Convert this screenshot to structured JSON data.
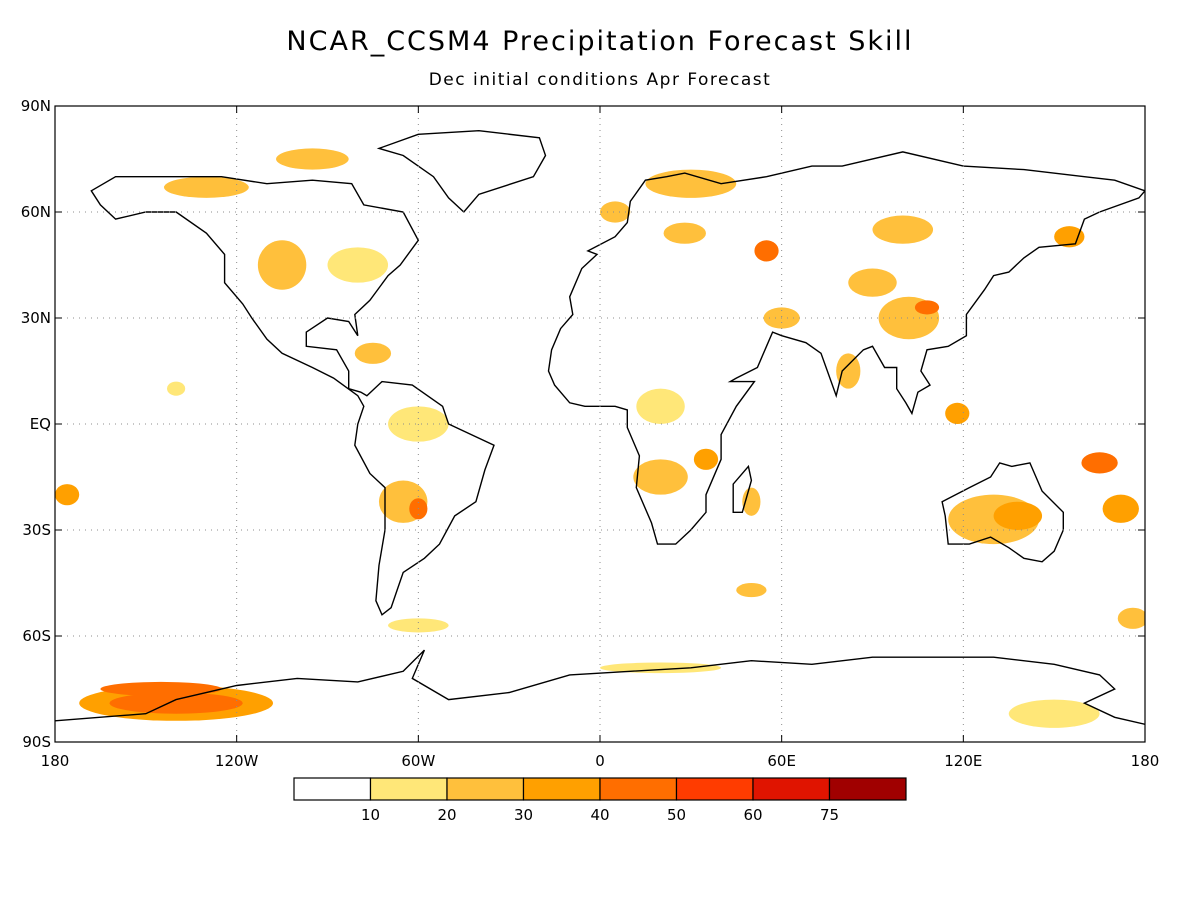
{
  "title": "NCAR_CCSM4 Precipitation Forecast Skill",
  "subtitle": "Dec initial conditions  Apr Forecast",
  "map": {
    "projection": "equirectangular",
    "lon_range": [
      -180,
      180
    ],
    "lat_range": [
      -90,
      90
    ],
    "gridlines": "dotted",
    "lat_ticks": [
      {
        "value": 90,
        "label": "90N"
      },
      {
        "value": 60,
        "label": "60N"
      },
      {
        "value": 30,
        "label": "30N"
      },
      {
        "value": 0,
        "label": "EQ"
      },
      {
        "value": -30,
        "label": "30S"
      },
      {
        "value": -60,
        "label": "60S"
      },
      {
        "value": -90,
        "label": "90S"
      }
    ],
    "lon_ticks": [
      {
        "value": -180,
        "label": "180"
      },
      {
        "value": -120,
        "label": "120W"
      },
      {
        "value": -60,
        "label": "60W"
      },
      {
        "value": 0,
        "label": "0"
      },
      {
        "value": 60,
        "label": "60E"
      },
      {
        "value": 120,
        "label": "120E"
      },
      {
        "value": 180,
        "label": "180"
      }
    ]
  },
  "legend": {
    "boxes": [
      {
        "color": "#ffffff"
      },
      {
        "color": "#ffe778"
      },
      {
        "color": "#ffc03c"
      },
      {
        "color": "#ffa000"
      },
      {
        "color": "#ff6e00"
      },
      {
        "color": "#ff3c00"
      },
      {
        "color": "#e01400"
      },
      {
        "color": "#a00000"
      }
    ],
    "labels": [
      "10",
      "20",
      "30",
      "40",
      "50",
      "60",
      "75"
    ]
  },
  "skill_regions": [
    {
      "lon": -140,
      "lat": -79,
      "rlon": 32,
      "rlat": 5,
      "level": 3
    },
    {
      "lon": -140,
      "lat": -79,
      "rlon": 22,
      "rlat": 3,
      "level": 4
    },
    {
      "lon": -145,
      "lat": -75,
      "rlon": 20,
      "rlat": 2,
      "level": 4
    },
    {
      "lon": 150,
      "lat": -82,
      "rlon": 15,
      "rlat": 4,
      "level": 1
    },
    {
      "lon": 130,
      "lat": -27,
      "rlon": 15,
      "rlat": 7,
      "level": 2
    },
    {
      "lon": 138,
      "lat": -26,
      "rlon": 8,
      "rlat": 4,
      "level": 3
    },
    {
      "lon": 165,
      "lat": -11,
      "rlon": 6,
      "rlat": 3,
      "level": 4
    },
    {
      "lon": 172,
      "lat": -24,
      "rlon": 6,
      "rlat": 4,
      "level": 3
    },
    {
      "lon": 176,
      "lat": -55,
      "rlon": 5,
      "rlat": 3,
      "level": 2
    },
    {
      "lon": 102,
      "lat": 30,
      "rlon": 10,
      "rlat": 6,
      "level": 2
    },
    {
      "lon": 108,
      "lat": 33,
      "rlon": 4,
      "rlat": 2,
      "level": 4
    },
    {
      "lon": 90,
      "lat": 40,
      "rlon": 8,
      "rlat": 4,
      "level": 2
    },
    {
      "lon": 55,
      "lat": 49,
      "rlon": 4,
      "rlat": 3,
      "level": 4
    },
    {
      "lon": 28,
      "lat": 54,
      "rlon": 7,
      "rlat": 3,
      "level": 2
    },
    {
      "lon": 30,
      "lat": 68,
      "rlon": 15,
      "rlat": 4,
      "level": 2
    },
    {
      "lon": 100,
      "lat": 55,
      "rlon": 10,
      "rlat": 4,
      "level": 2
    },
    {
      "lon": 155,
      "lat": 53,
      "rlon": 5,
      "rlat": 3,
      "level": 3
    },
    {
      "lon": 82,
      "lat": 15,
      "rlon": 4,
      "rlat": 5,
      "level": 2
    },
    {
      "lon": 118,
      "lat": 3,
      "rlon": 4,
      "rlat": 3,
      "level": 3
    },
    {
      "lon": 20,
      "lat": -15,
      "rlon": 9,
      "rlat": 5,
      "level": 2
    },
    {
      "lon": 35,
      "lat": -10,
      "rlon": 4,
      "rlat": 3,
      "level": 3
    },
    {
      "lon": 20,
      "lat": 5,
      "rlon": 8,
      "rlat": 5,
      "level": 1
    },
    {
      "lon": -65,
      "lat": -22,
      "rlon": 8,
      "rlat": 6,
      "level": 2
    },
    {
      "lon": -60,
      "lat": -24,
      "rlon": 3,
      "rlat": 3,
      "level": 4
    },
    {
      "lon": -60,
      "lat": 0,
      "rlon": 10,
      "rlat": 5,
      "level": 1
    },
    {
      "lon": -105,
      "lat": 45,
      "rlon": 8,
      "rlat": 7,
      "level": 2
    },
    {
      "lon": -80,
      "lat": 45,
      "rlon": 10,
      "rlat": 5,
      "level": 1
    },
    {
      "lon": -130,
      "lat": 67,
      "rlon": 14,
      "rlat": 3,
      "level": 2
    },
    {
      "lon": -95,
      "lat": 75,
      "rlon": 12,
      "rlat": 3,
      "level": 2
    },
    {
      "lon": -75,
      "lat": 20,
      "rlon": 6,
      "rlat": 3,
      "level": 2
    },
    {
      "lon": -176,
      "lat": -20,
      "rlon": 4,
      "rlat": 3,
      "level": 3
    },
    {
      "lon": 50,
      "lat": -22,
      "rlon": 3,
      "rlat": 4,
      "level": 2
    },
    {
      "lon": 50,
      "lat": -47,
      "rlon": 5,
      "rlat": 2,
      "level": 2
    },
    {
      "lon": 5,
      "lat": 60,
      "rlon": 5,
      "rlat": 3,
      "level": 2
    },
    {
      "lon": 60,
      "lat": 30,
      "rlon": 6,
      "rlat": 3,
      "level": 2
    },
    {
      "lon": -60,
      "lat": -57,
      "rlon": 10,
      "rlat": 2,
      "level": 1
    },
    {
      "lon": 20,
      "lat": -69,
      "rlon": 20,
      "rlat": 1.5,
      "level": 1
    },
    {
      "lon": -140,
      "lat": 10,
      "rlon": 3,
      "rlat": 2,
      "level": 1
    }
  ]
}
